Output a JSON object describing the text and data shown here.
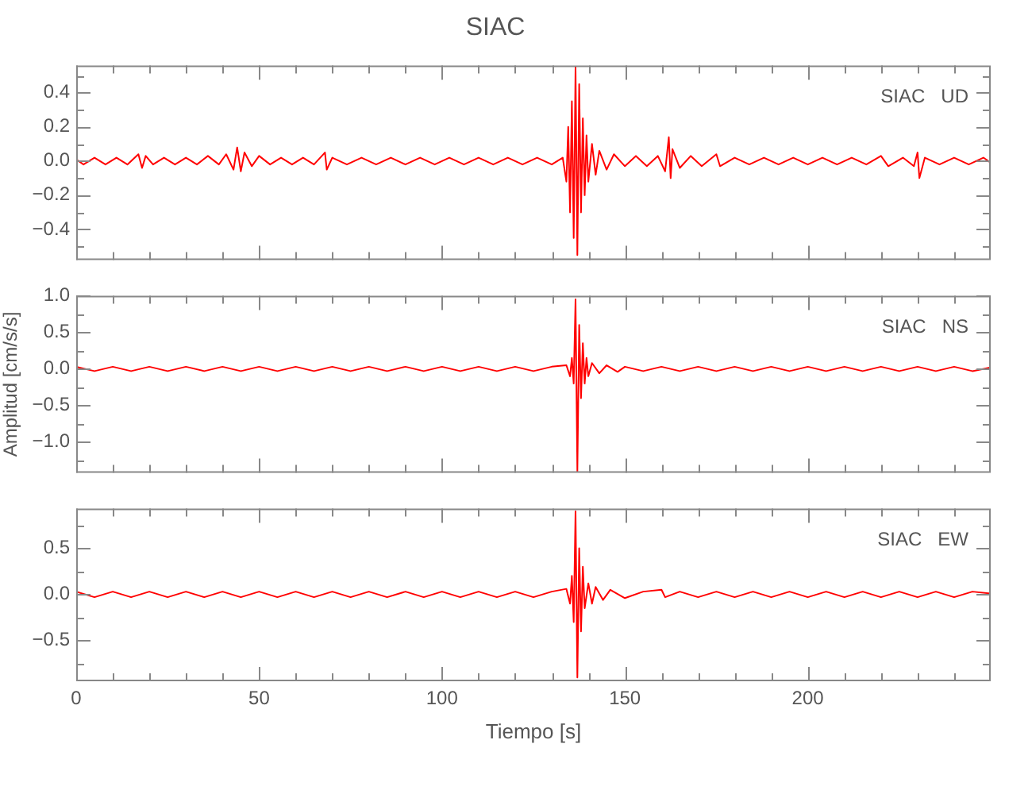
{
  "chart_data": [
    {
      "type": "line",
      "title": "SIAC",
      "annotations": [
        "SIAC   UD"
      ],
      "marker": "none",
      "tick_labels": "y",
      "xlim": [
        0,
        250
      ],
      "xticks": [
        0,
        {
          "value": 10,
          "label": null
        },
        {
          "value": 20,
          "label": null
        },
        {
          "value": 30,
          "label": null
        },
        {
          "value": 40,
          "label": null
        },
        50,
        {
          "value": 60,
          "label": null
        },
        {
          "value": 70,
          "label": null
        },
        {
          "value": 80,
          "label": null
        },
        {
          "value": 90,
          "label": null
        },
        100,
        {
          "value": 110,
          "label": null
        },
        {
          "value": 120,
          "label": null
        },
        {
          "value": 130,
          "label": null
        },
        {
          "value": 140,
          "label": null
        },
        150,
        {
          "value": 160,
          "label": null
        },
        {
          "value": 170,
          "label": null
        },
        {
          "value": 180,
          "label": null
        },
        {
          "value": 190,
          "label": null
        },
        200,
        {
          "value": 210,
          "label": null
        },
        {
          "value": 220,
          "label": null
        },
        {
          "value": 230,
          "label": null
        },
        {
          "value": 240,
          "label": null
        }
      ],
      "ylim": [
        -0.58,
        0.56
      ],
      "yticks": [
        {
          "value": -0.5,
          "label": null
        },
        {
          "value": -0.4,
          "label": "−0.4"
        },
        {
          "value": -0.3,
          "label": null
        },
        {
          "value": -0.2,
          "label": "−0.2"
        },
        {
          "value": -0.1,
          "label": null
        },
        {
          "value": 0,
          "label": "0.0"
        },
        {
          "value": 0.1,
          "label": null
        },
        0.2,
        {
          "value": 0.3,
          "label": null
        },
        0.4,
        {
          "value": 0.5,
          "label": null
        }
      ],
      "series": [
        {
          "color": "#ff0000",
          "x": [
            0,
            2,
            5,
            8,
            11,
            14,
            17,
            18,
            19,
            21,
            24,
            27,
            30,
            33,
            36,
            39,
            41,
            43,
            44,
            45,
            46,
            48,
            50,
            53,
            56,
            59,
            62,
            65,
            68,
            68.5,
            70,
            74,
            78,
            82,
            86,
            90,
            94,
            98,
            102,
            106,
            110,
            114,
            118,
            122,
            126,
            130,
            133,
            134,
            134.5,
            135,
            135.5,
            136,
            136.5,
            137,
            137.5,
            138,
            138.5,
            139,
            139.5,
            140,
            141,
            142,
            143,
            145,
            147,
            150,
            153,
            156,
            159,
            161,
            162,
            162.5,
            163,
            165,
            168,
            171,
            175,
            176,
            180,
            184,
            188,
            192,
            196,
            200,
            204,
            208,
            212,
            216,
            220,
            222,
            226,
            229,
            230,
            230.5,
            232,
            236,
            240,
            244,
            248,
            250
          ],
          "values": [
            0.01,
            -0.02,
            0.02,
            -0.02,
            0.02,
            -0.02,
            0.04,
            -0.04,
            0.03,
            -0.02,
            0.02,
            -0.02,
            0.02,
            -0.02,
            0.03,
            -0.02,
            0.04,
            -0.05,
            0.08,
            -0.06,
            0.05,
            -0.03,
            0.03,
            -0.02,
            0.02,
            -0.02,
            0.02,
            -0.02,
            0.05,
            -0.05,
            0.02,
            -0.02,
            0.02,
            -0.02,
            0.02,
            -0.02,
            0.02,
            -0.02,
            0.02,
            -0.02,
            0.02,
            -0.02,
            0.02,
            -0.02,
            0.02,
            -0.02,
            0.02,
            -0.12,
            0.2,
            -0.3,
            0.35,
            -0.45,
            0.55,
            -0.55,
            0.45,
            -0.3,
            0.25,
            -0.2,
            0.15,
            -0.12,
            0.1,
            -0.08,
            0.06,
            -0.05,
            0.04,
            -0.03,
            0.03,
            -0.03,
            0.03,
            -0.06,
            0.14,
            -0.1,
            0.07,
            -0.04,
            0.03,
            -0.03,
            0.04,
            -0.03,
            0.02,
            -0.02,
            0.02,
            -0.02,
            0.02,
            -0.02,
            0.02,
            -0.02,
            0.02,
            -0.02,
            0.03,
            -0.03,
            0.02,
            -0.03,
            0.05,
            -0.1,
            0.02,
            -0.02,
            0.02,
            -0.02,
            0.02,
            -0.01
          ]
        }
      ]
    },
    {
      "type": "line",
      "ylabel": "Amplitud [cm/s/s]",
      "annotations": [
        "SIAC   NS"
      ],
      "marker": "none",
      "tick_labels": "y",
      "xlim": [
        0,
        250
      ],
      "xticks": [
        0,
        {
          "value": 10,
          "label": null
        },
        {
          "value": 20,
          "label": null
        },
        {
          "value": 30,
          "label": null
        },
        {
          "value": 40,
          "label": null
        },
        50,
        {
          "value": 60,
          "label": null
        },
        {
          "value": 70,
          "label": null
        },
        {
          "value": 80,
          "label": null
        },
        {
          "value": 90,
          "label": null
        },
        100,
        {
          "value": 110,
          "label": null
        },
        {
          "value": 120,
          "label": null
        },
        {
          "value": 130,
          "label": null
        },
        {
          "value": 140,
          "label": null
        },
        150,
        {
          "value": 160,
          "label": null
        },
        {
          "value": 170,
          "label": null
        },
        {
          "value": 180,
          "label": null
        },
        {
          "value": 190,
          "label": null
        },
        200,
        {
          "value": 210,
          "label": null
        },
        {
          "value": 220,
          "label": null
        },
        {
          "value": 230,
          "label": null
        },
        {
          "value": 240,
          "label": null
        }
      ],
      "ylim": [
        -1.42,
        1.0
      ],
      "yticks": [
        {
          "value": -1.25,
          "label": null
        },
        {
          "value": -1,
          "label": "−1.0"
        },
        {
          "value": -0.75,
          "label": null
        },
        {
          "value": -0.5,
          "label": "−0.5"
        },
        {
          "value": -0.25,
          "label": null
        },
        {
          "value": 0,
          "label": "0.0"
        },
        {
          "value": 0.25,
          "label": null
        },
        0.5,
        {
          "value": 0.75,
          "label": null
        },
        {
          "value": 1,
          "label": "1.0"
        }
      ],
      "series": [
        {
          "color": "#ff0000",
          "x": [
            0,
            5,
            10,
            15,
            20,
            25,
            30,
            35,
            40,
            45,
            50,
            55,
            60,
            65,
            70,
            75,
            80,
            85,
            90,
            95,
            100,
            105,
            110,
            115,
            120,
            125,
            130,
            134,
            135,
            135.5,
            136,
            136.5,
            137,
            137.5,
            138,
            138.5,
            139,
            139.5,
            140,
            141,
            143,
            145,
            148,
            150,
            155,
            160,
            165,
            170,
            175,
            180,
            185,
            190,
            195,
            200,
            205,
            210,
            215,
            220,
            225,
            230,
            235,
            240,
            245,
            250
          ],
          "values": [
            0.03,
            -0.03,
            0.03,
            -0.03,
            0.03,
            -0.03,
            0.03,
            -0.03,
            0.03,
            -0.03,
            0.03,
            -0.03,
            0.03,
            -0.03,
            0.03,
            -0.03,
            0.03,
            -0.03,
            0.03,
            -0.03,
            0.03,
            -0.03,
            0.03,
            -0.03,
            0.03,
            -0.03,
            0.03,
            0.05,
            -0.1,
            0.15,
            -0.2,
            0.95,
            -1.4,
            0.6,
            -0.4,
            0.35,
            -0.2,
            0.15,
            -0.1,
            0.08,
            -0.06,
            0.05,
            -0.04,
            0.03,
            -0.03,
            0.03,
            -0.03,
            0.03,
            -0.03,
            0.03,
            -0.03,
            0.03,
            -0.03,
            0.03,
            -0.03,
            0.03,
            -0.03,
            0.03,
            -0.03,
            0.03,
            -0.03,
            0.03,
            -0.03,
            0.02
          ]
        }
      ]
    },
    {
      "type": "line",
      "xlabel": "Tiempo [s]",
      "annotations": [
        "SIAC   EW"
      ],
      "marker": "none",
      "xlim": [
        0,
        250
      ],
      "xticks": [
        0,
        {
          "value": 10,
          "label": null
        },
        {
          "value": 20,
          "label": null
        },
        {
          "value": 30,
          "label": null
        },
        {
          "value": 40,
          "label": null
        },
        50,
        {
          "value": 60,
          "label": null
        },
        {
          "value": 70,
          "label": null
        },
        {
          "value": 80,
          "label": null
        },
        {
          "value": 90,
          "label": null
        },
        100,
        {
          "value": 110,
          "label": null
        },
        {
          "value": 120,
          "label": null
        },
        {
          "value": 130,
          "label": null
        },
        {
          "value": 140,
          "label": null
        },
        150,
        {
          "value": 160,
          "label": null
        },
        {
          "value": 170,
          "label": null
        },
        {
          "value": 180,
          "label": null
        },
        {
          "value": 190,
          "label": null
        },
        200,
        {
          "value": 210,
          "label": null
        },
        {
          "value": 220,
          "label": null
        },
        {
          "value": 230,
          "label": null
        },
        {
          "value": 240,
          "label": null
        }
      ],
      "ylim": [
        -0.94,
        0.93
      ],
      "yticks": [
        {
          "value": -0.75,
          "label": null
        },
        {
          "value": -0.5,
          "label": "−0.5"
        },
        {
          "value": -0.25,
          "label": null
        },
        {
          "value": 0,
          "label": "0.0"
        },
        {
          "value": 0.25,
          "label": null
        },
        0.5,
        {
          "value": 0.75,
          "label": null
        }
      ],
      "series": [
        {
          "color": "#ff0000",
          "x": [
            0,
            5,
            10,
            15,
            20,
            25,
            30,
            35,
            40,
            45,
            50,
            55,
            60,
            65,
            70,
            75,
            80,
            85,
            90,
            95,
            100,
            105,
            110,
            115,
            120,
            125,
            130,
            134,
            135,
            135.5,
            136,
            136.5,
            137,
            137.5,
            138,
            138.5,
            139,
            140,
            141,
            142,
            144,
            146,
            150,
            155,
            160,
            161,
            165,
            170,
            175,
            180,
            185,
            190,
            195,
            200,
            205,
            210,
            215,
            220,
            225,
            230,
            235,
            240,
            245,
            250
          ],
          "values": [
            0.03,
            -0.03,
            0.03,
            -0.03,
            0.03,
            -0.03,
            0.03,
            -0.03,
            0.03,
            -0.03,
            0.03,
            -0.03,
            0.03,
            -0.03,
            0.03,
            -0.03,
            0.03,
            -0.03,
            0.03,
            -0.03,
            0.03,
            -0.03,
            0.03,
            -0.03,
            0.03,
            -0.03,
            0.03,
            0.06,
            -0.1,
            0.2,
            -0.3,
            0.9,
            -0.9,
            0.5,
            -0.4,
            0.3,
            -0.15,
            0.12,
            -0.1,
            0.08,
            -0.06,
            0.05,
            -0.04,
            0.03,
            0.05,
            -0.03,
            0.03,
            -0.03,
            0.03,
            -0.03,
            0.03,
            -0.03,
            0.03,
            -0.03,
            0.03,
            -0.03,
            0.03,
            -0.03,
            0.03,
            -0.03,
            0.03,
            -0.03,
            0.03,
            0.01
          ]
        }
      ]
    }
  ]
}
